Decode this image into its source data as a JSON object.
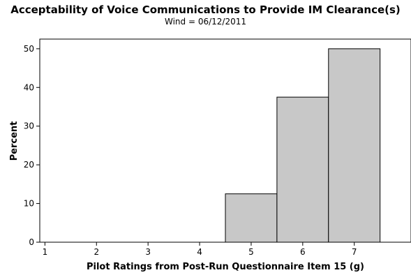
{
  "chart_data": {
    "type": "bar",
    "title": "Acceptability of Voice Communications to Provide IM Clearance(s)",
    "subtitle": "Wind = 06/12/2011",
    "xlabel": "Pilot Ratings from Post-Run Questionnaire Item 15 (g)",
    "ylabel": "Percent",
    "x_ticks": [
      1,
      2,
      3,
      4,
      5,
      6,
      7
    ],
    "y_ticks": [
      0,
      10,
      20,
      30,
      40,
      50
    ],
    "xlim": [
      0.9,
      8.1
    ],
    "ylim": [
      0,
      52.5
    ],
    "bar_width": 1,
    "categories": [
      5,
      6,
      7
    ],
    "values": [
      12.5,
      37.5,
      50
    ],
    "grid": false,
    "colors": {
      "bar_fill": "#c8c8c8",
      "bar_stroke": "#000000",
      "axis": "#000000"
    }
  }
}
